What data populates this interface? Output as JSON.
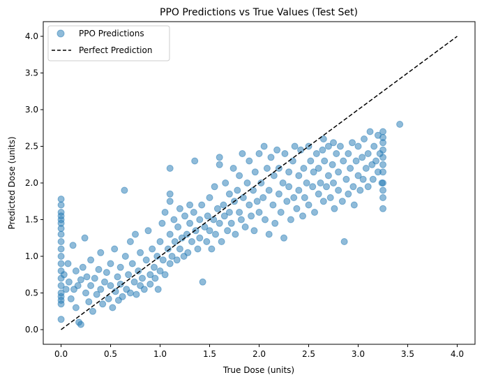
{
  "chart_data": {
    "type": "scatter",
    "title": "PPO Predictions vs True Values (Test Set)",
    "xlabel": "True Dose (units)",
    "ylabel": "Predicted Dose (units)",
    "xlim": [
      -0.18,
      4.18
    ],
    "ylim": [
      -0.2,
      4.2
    ],
    "xticks": [
      0.0,
      0.5,
      1.0,
      1.5,
      2.0,
      2.5,
      3.0,
      3.5,
      4.0
    ],
    "yticks": [
      0.0,
      0.5,
      1.0,
      1.5,
      2.0,
      2.5,
      3.0,
      3.5,
      4.0
    ],
    "xtick_labels": [
      "0.0",
      "0.5",
      "1.0",
      "1.5",
      "2.0",
      "2.5",
      "3.0",
      "3.5",
      "4.0"
    ],
    "ytick_labels": [
      "0.0",
      "0.5",
      "1.0",
      "1.5",
      "2.0",
      "2.5",
      "3.0",
      "3.5",
      "4.0"
    ],
    "grid": false,
    "legend_position": "top-left",
    "series": [
      {
        "name": "PPO Predictions",
        "kind": "scatter",
        "color": "#1f77b4",
        "opacity": 0.5,
        "points": [
          [
            0.0,
            1.78
          ],
          [
            0.0,
            1.7
          ],
          [
            0.0,
            1.6
          ],
          [
            0.0,
            1.55
          ],
          [
            0.0,
            1.5
          ],
          [
            0.0,
            1.45
          ],
          [
            0.0,
            1.38
          ],
          [
            0.0,
            1.3
          ],
          [
            0.0,
            1.2
          ],
          [
            0.0,
            1.1
          ],
          [
            0.0,
            1.0
          ],
          [
            0.0,
            0.9
          ],
          [
            0.0,
            0.8
          ],
          [
            0.0,
            0.7
          ],
          [
            0.0,
            0.6
          ],
          [
            0.0,
            0.5
          ],
          [
            0.0,
            0.45
          ],
          [
            0.0,
            0.4
          ],
          [
            0.0,
            0.35
          ],
          [
            0.0,
            0.14
          ],
          [
            0.03,
            0.75
          ],
          [
            0.05,
            0.55
          ],
          [
            0.07,
            0.9
          ],
          [
            0.08,
            0.65
          ],
          [
            0.1,
            0.42
          ],
          [
            0.12,
            1.15
          ],
          [
            0.13,
            0.55
          ],
          [
            0.15,
            0.8
          ],
          [
            0.15,
            0.3
          ],
          [
            0.17,
            0.6
          ],
          [
            0.18,
            0.1
          ],
          [
            0.2,
            0.68
          ],
          [
            0.2,
            0.07
          ],
          [
            0.22,
            0.85
          ],
          [
            0.24,
            1.25
          ],
          [
            0.25,
            0.5
          ],
          [
            0.26,
            0.72
          ],
          [
            0.28,
            0.38
          ],
          [
            0.3,
            0.6
          ],
          [
            0.3,
            0.95
          ],
          [
            0.32,
            0.25
          ],
          [
            0.34,
            0.7
          ],
          [
            0.36,
            0.48
          ],
          [
            0.38,
            0.82
          ],
          [
            0.4,
            1.05
          ],
          [
            0.4,
            0.55
          ],
          [
            0.42,
            0.35
          ],
          [
            0.44,
            0.65
          ],
          [
            0.46,
            0.78
          ],
          [
            0.48,
            0.42
          ],
          [
            0.5,
            0.9
          ],
          [
            0.5,
            0.6
          ],
          [
            0.52,
            0.3
          ],
          [
            0.54,
            1.1
          ],
          [
            0.55,
            0.52
          ],
          [
            0.57,
            0.72
          ],
          [
            0.58,
            0.4
          ],
          [
            0.6,
            0.85
          ],
          [
            0.6,
            0.62
          ],
          [
            0.62,
            0.45
          ],
          [
            0.64,
            1.9
          ],
          [
            0.65,
            1.0
          ],
          [
            0.66,
            0.55
          ],
          [
            0.68,
            0.75
          ],
          [
            0.7,
            1.2
          ],
          [
            0.7,
            0.5
          ],
          [
            0.72,
            0.9
          ],
          [
            0.74,
            0.65
          ],
          [
            0.75,
            1.3
          ],
          [
            0.76,
            0.48
          ],
          [
            0.78,
            0.8
          ],
          [
            0.8,
            0.6
          ],
          [
            0.8,
            1.05
          ],
          [
            0.82,
            0.7
          ],
          [
            0.84,
            0.55
          ],
          [
            0.86,
            0.95
          ],
          [
            0.88,
            1.35
          ],
          [
            0.9,
            0.75
          ],
          [
            0.9,
            0.62
          ],
          [
            0.92,
            1.1
          ],
          [
            0.94,
            0.85
          ],
          [
            0.95,
            0.7
          ],
          [
            0.97,
            1.0
          ],
          [
            0.98,
            0.55
          ],
          [
            1.0,
            1.2
          ],
          [
            1.0,
            0.8
          ],
          [
            1.02,
            1.45
          ],
          [
            1.03,
            0.95
          ],
          [
            1.05,
            1.6
          ],
          [
            1.05,
            0.75
          ],
          [
            1.08,
            1.1
          ],
          [
            1.1,
            0.9
          ],
          [
            1.1,
            1.3
          ],
          [
            1.1,
            2.2
          ],
          [
            1.1,
            1.85
          ],
          [
            1.1,
            1.75
          ],
          [
            1.12,
            1.0
          ],
          [
            1.14,
            1.5
          ],
          [
            1.15,
            1.2
          ],
          [
            1.17,
            0.95
          ],
          [
            1.18,
            1.4
          ],
          [
            1.2,
            1.1
          ],
          [
            1.2,
            1.65
          ],
          [
            1.22,
            1.25
          ],
          [
            1.24,
            1.0
          ],
          [
            1.25,
            1.55
          ],
          [
            1.27,
            1.3
          ],
          [
            1.28,
            1.05
          ],
          [
            1.3,
            1.45
          ],
          [
            1.3,
            1.7
          ],
          [
            1.32,
            1.2
          ],
          [
            1.34,
            1.6
          ],
          [
            1.35,
            2.3
          ],
          [
            1.36,
            1.35
          ],
          [
            1.38,
            1.1
          ],
          [
            1.4,
            1.5
          ],
          [
            1.4,
            1.25
          ],
          [
            1.42,
            1.7
          ],
          [
            1.43,
            0.65
          ],
          [
            1.45,
            1.4
          ],
          [
            1.47,
            1.2
          ],
          [
            1.48,
            1.55
          ],
          [
            1.5,
            1.35
          ],
          [
            1.5,
            1.8
          ],
          [
            1.52,
            1.1
          ],
          [
            1.54,
            1.5
          ],
          [
            1.55,
            1.95
          ],
          [
            1.56,
            1.3
          ],
          [
            1.58,
            1.65
          ],
          [
            1.6,
            2.35
          ],
          [
            1.6,
            2.25
          ],
          [
            1.6,
            1.45
          ],
          [
            1.62,
            1.2
          ],
          [
            1.64,
            1.7
          ],
          [
            1.65,
            1.55
          ],
          [
            1.66,
            2.0
          ],
          [
            1.68,
            1.35
          ],
          [
            1.7,
            1.6
          ],
          [
            1.7,
            1.85
          ],
          [
            1.72,
            1.45
          ],
          [
            1.74,
            2.2
          ],
          [
            1.75,
            1.75
          ],
          [
            1.76,
            1.3
          ],
          [
            1.78,
            1.9
          ],
          [
            1.8,
            1.6
          ],
          [
            1.8,
            2.1
          ],
          [
            1.82,
            1.5
          ],
          [
            1.83,
            2.4
          ],
          [
            1.84,
            1.8
          ],
          [
            1.86,
            1.4
          ],
          [
            1.88,
            2.0
          ],
          [
            1.9,
            1.7
          ],
          [
            1.9,
            2.3
          ],
          [
            1.92,
            1.55
          ],
          [
            1.94,
            1.9
          ],
          [
            1.95,
            1.35
          ],
          [
            1.96,
            2.15
          ],
          [
            1.98,
            1.75
          ],
          [
            2.0,
            2.4
          ],
          [
            2.0,
            1.6
          ],
          [
            2.02,
            2.0
          ],
          [
            2.04,
            1.8
          ],
          [
            2.05,
            2.5
          ],
          [
            2.06,
            1.5
          ],
          [
            2.08,
            2.2
          ],
          [
            2.1,
            1.9
          ],
          [
            2.1,
            1.3
          ],
          [
            2.12,
            2.35
          ],
          [
            2.14,
            1.7
          ],
          [
            2.15,
            2.1
          ],
          [
            2.16,
            1.45
          ],
          [
            2.18,
            2.45
          ],
          [
            2.2,
            1.85
          ],
          [
            2.2,
            2.2
          ],
          [
            2.22,
            1.6
          ],
          [
            2.24,
            2.0
          ],
          [
            2.25,
            1.25
          ],
          [
            2.26,
            2.4
          ],
          [
            2.28,
            1.75
          ],
          [
            2.3,
            2.15
          ],
          [
            2.3,
            1.95
          ],
          [
            2.32,
            1.5
          ],
          [
            2.34,
            2.3
          ],
          [
            2.35,
            1.8
          ],
          [
            2.36,
            2.5
          ],
          [
            2.38,
            1.65
          ],
          [
            2.4,
            2.1
          ],
          [
            2.4,
            1.9
          ],
          [
            2.42,
            2.45
          ],
          [
            2.44,
            1.55
          ],
          [
            2.45,
            2.2
          ],
          [
            2.46,
            1.8
          ],
          [
            2.48,
            2.0
          ],
          [
            2.5,
            2.5
          ],
          [
            2.5,
            1.7
          ],
          [
            2.52,
            2.3
          ],
          [
            2.54,
            1.95
          ],
          [
            2.55,
            2.15
          ],
          [
            2.56,
            1.6
          ],
          [
            2.58,
            2.4
          ],
          [
            2.6,
            1.85
          ],
          [
            2.6,
            2.2
          ],
          [
            2.62,
            2.0
          ],
          [
            2.64,
            2.45
          ],
          [
            2.65,
            1.75
          ],
          [
            2.66,
            2.3
          ],
          [
            2.68,
            1.95
          ],
          [
            2.7,
            2.1
          ],
          [
            2.7,
            2.5
          ],
          [
            2.72,
            1.8
          ],
          [
            2.74,
            2.25
          ],
          [
            2.75,
            2.0
          ],
          [
            2.76,
            1.65
          ],
          [
            2.78,
            2.4
          ],
          [
            2.8,
            1.9
          ],
          [
            2.8,
            2.15
          ],
          [
            2.82,
            2.5
          ],
          [
            2.84,
            1.75
          ],
          [
            2.85,
            2.3
          ],
          [
            2.86,
            1.2
          ],
          [
            2.88,
            2.05
          ],
          [
            2.9,
            2.4
          ],
          [
            2.9,
            1.85
          ],
          [
            2.92,
            2.2
          ],
          [
            2.94,
            2.55
          ],
          [
            2.95,
            1.95
          ],
          [
            2.96,
            1.7
          ],
          [
            2.98,
            2.3
          ],
          [
            3.0,
            2.1
          ],
          [
            3.0,
            2.5
          ],
          [
            3.02,
            1.9
          ],
          [
            3.04,
            2.35
          ],
          [
            3.05,
            2.05
          ],
          [
            3.06,
            2.6
          ],
          [
            3.08,
            2.2
          ],
          [
            3.1,
            1.95
          ],
          [
            3.1,
            2.4
          ],
          [
            3.12,
            2.7
          ],
          [
            3.14,
            2.25
          ],
          [
            3.15,
            2.05
          ],
          [
            3.16,
            2.5
          ],
          [
            3.18,
            2.3
          ],
          [
            3.2,
            2.65
          ],
          [
            3.2,
            2.15
          ],
          [
            3.22,
            2.4
          ],
          [
            3.24,
            2.0
          ],
          [
            3.25,
            2.55
          ],
          [
            3.25,
            2.45
          ],
          [
            3.25,
            2.35
          ],
          [
            3.25,
            2.25
          ],
          [
            3.25,
            2.15
          ],
          [
            3.25,
            2.0
          ],
          [
            3.25,
            1.9
          ],
          [
            3.25,
            1.8
          ],
          [
            3.25,
            1.65
          ],
          [
            3.25,
            2.62
          ],
          [
            3.25,
            2.7
          ],
          [
            3.42,
            2.8
          ],
          [
            2.75,
            2.55
          ],
          [
            2.65,
            2.6
          ]
        ]
      },
      {
        "name": "Perfect Prediction",
        "kind": "line",
        "color": "#000000",
        "dash": "dashed",
        "points": [
          [
            0.0,
            0.0
          ],
          [
            4.0,
            4.0
          ]
        ]
      }
    ]
  }
}
